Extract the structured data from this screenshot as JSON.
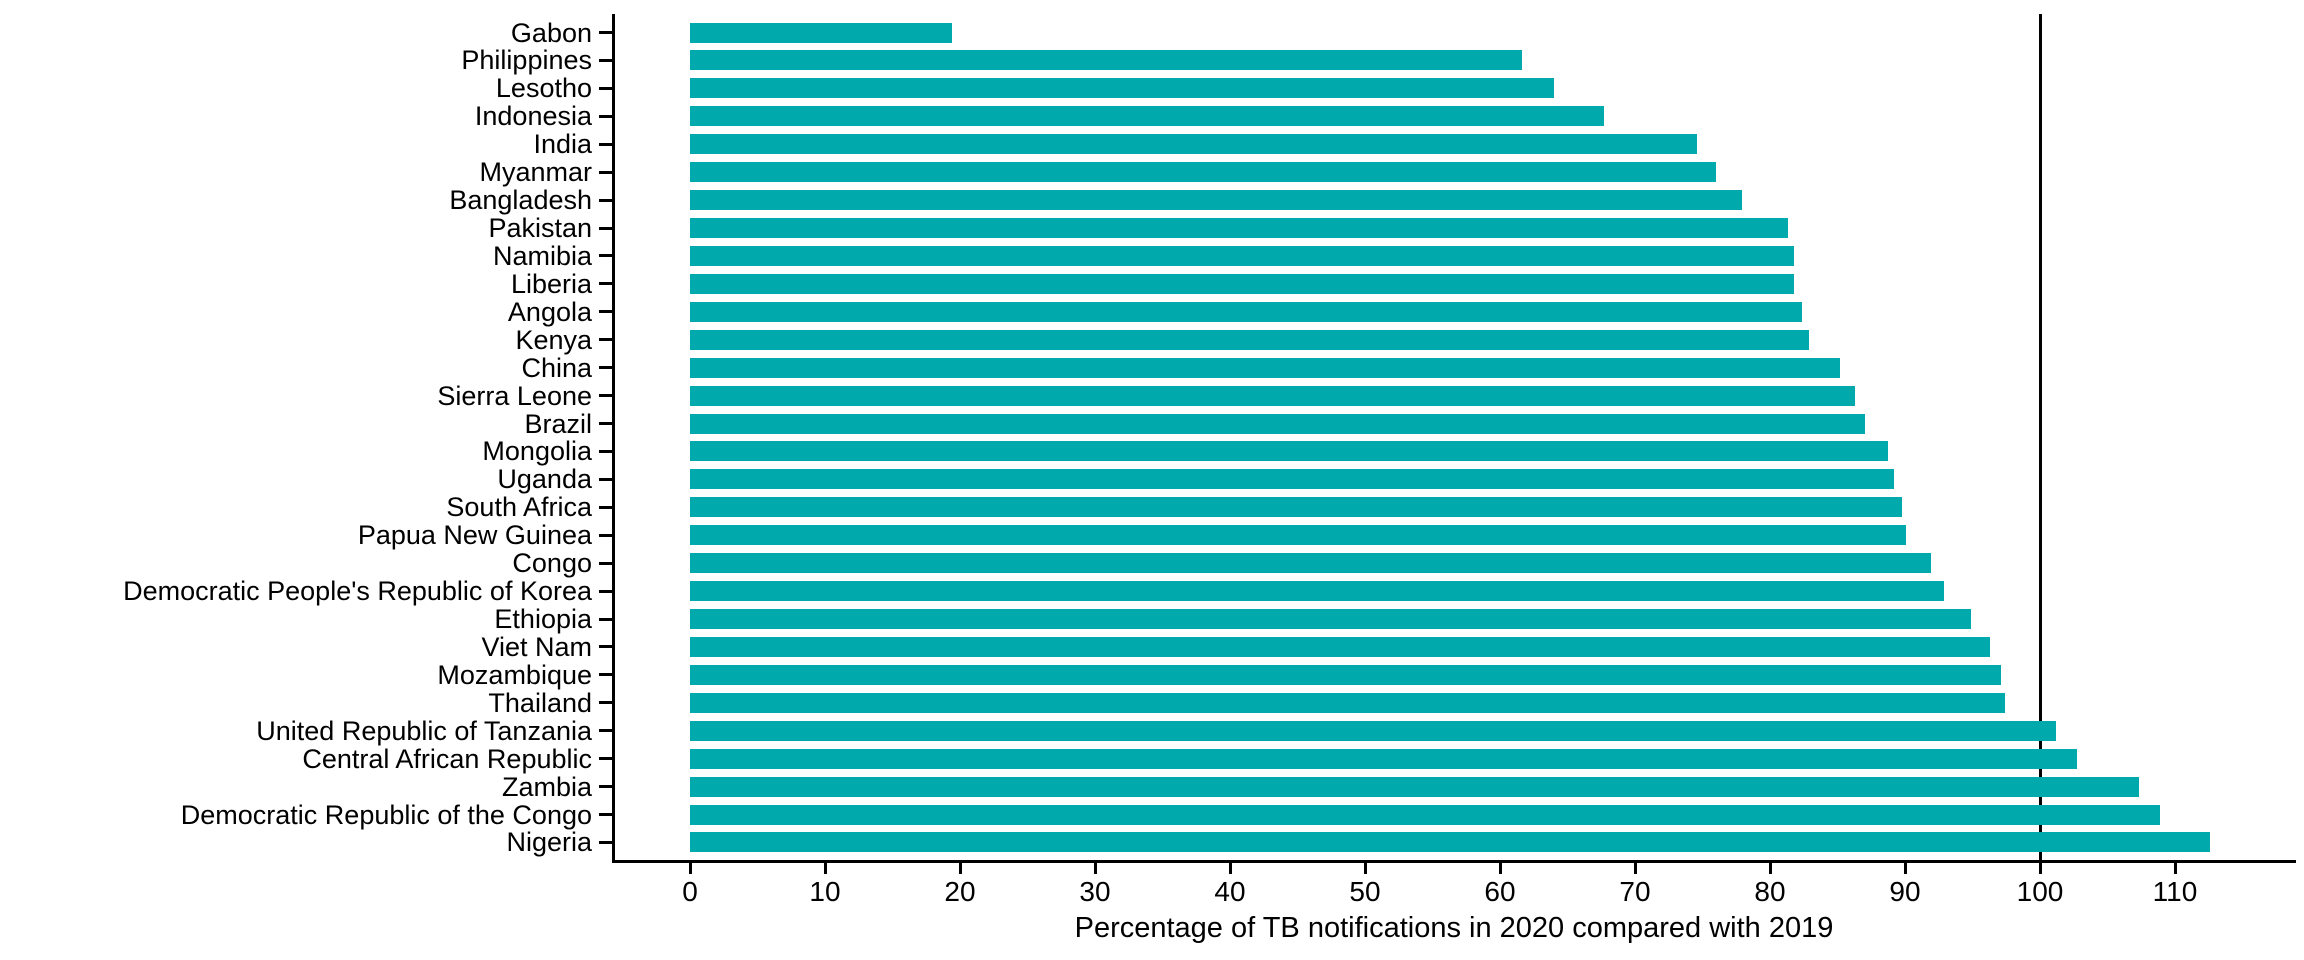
{
  "chart_data": {
    "type": "bar",
    "orientation": "horizontal",
    "title": "",
    "xlabel": "Percentage of TB notifications in 2020 compared with 2019",
    "ylabel": "",
    "categories": [
      "Gabon",
      "Philippines",
      "Lesotho",
      "Indonesia",
      "India",
      "Myanmar",
      "Bangladesh",
      "Pakistan",
      "Namibia",
      "Liberia",
      "Angola",
      "Kenya",
      "China",
      "Sierra Leone",
      "Brazil",
      "Mongolia",
      "Uganda",
      "South Africa",
      "Papua New Guinea",
      "Congo",
      "Democratic People's Republic of Korea",
      "Ethiopia",
      "Viet Nam",
      "Mozambique",
      "Thailand",
      "United Republic of Tanzania",
      "Central African Republic",
      "Zambia",
      "Democratic Republic of the Congo",
      "Nigeria"
    ],
    "values": [
      19.4,
      61.6,
      64.0,
      67.7,
      74.6,
      76.0,
      77.9,
      81.3,
      81.8,
      81.8,
      82.4,
      82.9,
      85.2,
      86.3,
      87.0,
      88.7,
      89.2,
      89.8,
      90.1,
      91.9,
      92.9,
      94.9,
      96.3,
      97.1,
      97.4,
      101.2,
      102.7,
      107.3,
      108.9,
      112.6
    ],
    "xlim": [
      0,
      118
    ],
    "xticks": [
      0,
      10,
      20,
      30,
      40,
      50,
      60,
      70,
      80,
      90,
      100,
      110
    ],
    "reference_line_x": 100,
    "bar_color": "#00A9AB",
    "axis_color": "#000000",
    "grid": "off",
    "legend": "none"
  }
}
